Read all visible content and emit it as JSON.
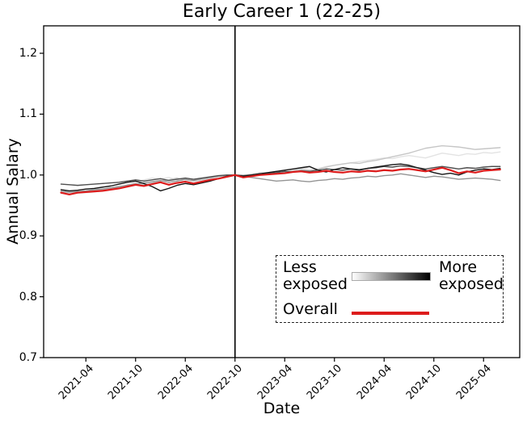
{
  "title": "Early Career 1 (22-25)",
  "axes": {
    "ylabel": "Annual Salary",
    "xlabel": "Date"
  },
  "legend": {
    "less": "Less exposed",
    "more": "More exposed",
    "overall": "Overall"
  },
  "colors": {
    "overall_line": "#dd1c1c",
    "event_line": "#000000",
    "axis": "#000000",
    "background": "#ffffff"
  },
  "chart_data": {
    "type": "line",
    "title": "Early Career 1 (22-25)",
    "xlabel": "Date",
    "ylabel": "Annual Salary",
    "ylim": [
      0.7,
      1.245
    ],
    "grid": false,
    "legend_position": "lower right",
    "x": [
      "2021-01",
      "2021-02",
      "2021-03",
      "2021-04",
      "2021-05",
      "2021-06",
      "2021-07",
      "2021-08",
      "2021-09",
      "2021-10",
      "2021-11",
      "2021-12",
      "2022-01",
      "2022-02",
      "2022-03",
      "2022-04",
      "2022-05",
      "2022-06",
      "2022-07",
      "2022-08",
      "2022-09",
      "2022-10",
      "2022-11",
      "2022-12",
      "2023-01",
      "2023-02",
      "2023-03",
      "2023-04",
      "2023-05",
      "2023-06",
      "2023-07",
      "2023-08",
      "2023-09",
      "2023-10",
      "2023-11",
      "2023-12",
      "2024-01",
      "2024-02",
      "2024-03",
      "2024-04",
      "2024-05",
      "2024-06",
      "2024-07",
      "2024-08",
      "2024-09",
      "2024-10",
      "2024-11",
      "2024-12",
      "2025-01",
      "2025-02",
      "2025-03",
      "2025-04",
      "2025-05",
      "2025-06"
    ],
    "x_ticks": [
      {
        "label": "2021-04",
        "month_index": 3
      },
      {
        "label": "2021-10",
        "month_index": 9
      },
      {
        "label": "2022-04",
        "month_index": 15
      },
      {
        "label": "2022-10",
        "month_index": 21
      },
      {
        "label": "2023-04",
        "month_index": 27
      },
      {
        "label": "2023-10",
        "month_index": 33
      },
      {
        "label": "2024-04",
        "month_index": 39
      },
      {
        "label": "2024-10",
        "month_index": 45
      },
      {
        "label": "2025-04",
        "month_index": 51
      }
    ],
    "y_ticks": [
      {
        "label": "0.7",
        "value": 0.7
      },
      {
        "label": "0.8",
        "value": 0.8
      },
      {
        "label": "0.9",
        "value": 0.9
      },
      {
        "label": "1.0",
        "value": 1.0
      },
      {
        "label": "1.1",
        "value": 1.1
      },
      {
        "label": "1.2",
        "value": 1.2
      }
    ],
    "event_line": {
      "month": "2022-10",
      "month_index": 21,
      "color": "#000000"
    },
    "series": [
      {
        "name": "exposure-q1-least-exposed",
        "color": "#e3e3e3",
        "values": [
          0.97,
          0.969,
          0.97,
          0.971,
          0.972,
          0.974,
          0.976,
          0.979,
          0.983,
          0.988,
          0.992,
          0.995,
          0.993,
          0.996,
          0.992,
          0.989,
          0.987,
          0.99,
          0.994,
          0.997,
          0.999,
          1.0,
          1.0,
          1.002,
          1.004,
          1.003,
          1.005,
          1.006,
          1.008,
          1.01,
          1.012,
          1.01,
          1.014,
          1.016,
          1.018,
          1.02,
          1.022,
          1.024,
          1.026,
          1.028,
          1.027,
          1.03,
          1.032,
          1.03,
          1.028,
          1.032,
          1.036,
          1.034,
          1.032,
          1.035,
          1.034,
          1.037,
          1.036,
          1.038
        ]
      },
      {
        "name": "exposure-q2",
        "color": "#c6c6c6",
        "values": [
          0.972,
          0.971,
          0.972,
          0.973,
          0.975,
          0.976,
          0.978,
          0.98,
          0.984,
          0.986,
          0.984,
          0.987,
          0.99,
          0.992,
          0.995,
          0.992,
          0.99,
          0.992,
          0.995,
          0.998,
          1.0,
          1.0,
          0.999,
          1.001,
          1.003,
          1.004,
          1.006,
          1.005,
          1.007,
          1.009,
          1.008,
          1.01,
          1.013,
          1.016,
          1.018,
          1.02,
          1.019,
          1.022,
          1.024,
          1.027,
          1.03,
          1.033,
          1.036,
          1.04,
          1.044,
          1.046,
          1.048,
          1.047,
          1.046,
          1.044,
          1.042,
          1.043,
          1.044,
          1.045
        ]
      },
      {
        "name": "exposure-q3",
        "color": "#949494",
        "values": [
          0.974,
          0.972,
          0.973,
          0.974,
          0.976,
          0.977,
          0.979,
          0.981,
          0.983,
          0.985,
          0.987,
          0.989,
          0.991,
          0.988,
          0.99,
          0.993,
          0.991,
          0.994,
          0.996,
          0.998,
          0.999,
          1.0,
          0.998,
          0.996,
          0.994,
          0.992,
          0.99,
          0.991,
          0.992,
          0.99,
          0.989,
          0.991,
          0.992,
          0.994,
          0.993,
          0.995,
          0.996,
          0.998,
          0.997,
          0.999,
          1.0,
          1.002,
          1.0,
          0.998,
          0.996,
          0.998,
          0.997,
          0.995,
          0.993,
          0.994,
          0.995,
          0.994,
          0.993,
          0.991
        ]
      },
      {
        "name": "exposure-q4",
        "color": "#4f4f4f",
        "values": [
          0.985,
          0.984,
          0.983,
          0.984,
          0.985,
          0.986,
          0.987,
          0.988,
          0.99,
          0.992,
          0.99,
          0.992,
          0.994,
          0.991,
          0.993,
          0.995,
          0.993,
          0.995,
          0.997,
          0.999,
          1.0,
          1.0,
          0.999,
          1.0,
          1.002,
          1.003,
          1.004,
          1.006,
          1.005,
          1.007,
          1.006,
          1.008,
          1.01,
          1.009,
          1.008,
          1.01,
          1.009,
          1.011,
          1.012,
          1.014,
          1.013,
          1.015,
          1.014,
          1.012,
          1.01,
          1.012,
          1.014,
          1.012,
          1.01,
          1.012,
          1.011,
          1.013,
          1.014,
          1.014
        ]
      },
      {
        "name": "exposure-q5-most-exposed",
        "color": "#151515",
        "values": [
          0.976,
          0.974,
          0.975,
          0.977,
          0.978,
          0.98,
          0.982,
          0.985,
          0.988,
          0.99,
          0.986,
          0.981,
          0.974,
          0.978,
          0.983,
          0.986,
          0.984,
          0.987,
          0.99,
          0.994,
          0.998,
          1.0,
          0.998,
          1.0,
          1.002,
          1.004,
          1.006,
          1.008,
          1.01,
          1.012,
          1.014,
          1.008,
          1.005,
          1.009,
          1.012,
          1.01,
          1.008,
          1.011,
          1.013,
          1.015,
          1.017,
          1.018,
          1.016,
          1.012,
          1.008,
          1.004,
          1.001,
          1.003,
          1.0,
          1.005,
          1.008,
          1.01,
          1.009,
          1.011
        ]
      },
      {
        "name": "overall",
        "color": "#dd1c1c",
        "values": [
          0.971,
          0.968,
          0.971,
          0.972,
          0.973,
          0.974,
          0.976,
          0.978,
          0.981,
          0.984,
          0.982,
          0.985,
          0.988,
          0.984,
          0.987,
          0.989,
          0.986,
          0.989,
          0.992,
          0.994,
          0.997,
          1.0,
          0.996,
          0.998,
          1.0,
          1.001,
          1.002,
          1.003,
          1.005,
          1.006,
          1.004,
          1.005,
          1.007,
          1.005,
          1.004,
          1.006,
          1.005,
          1.007,
          1.006,
          1.008,
          1.007,
          1.009,
          1.01,
          1.008,
          1.006,
          1.009,
          1.012,
          1.008,
          1.003,
          1.006,
          1.004,
          1.007,
          1.008,
          1.009
        ]
      }
    ]
  }
}
